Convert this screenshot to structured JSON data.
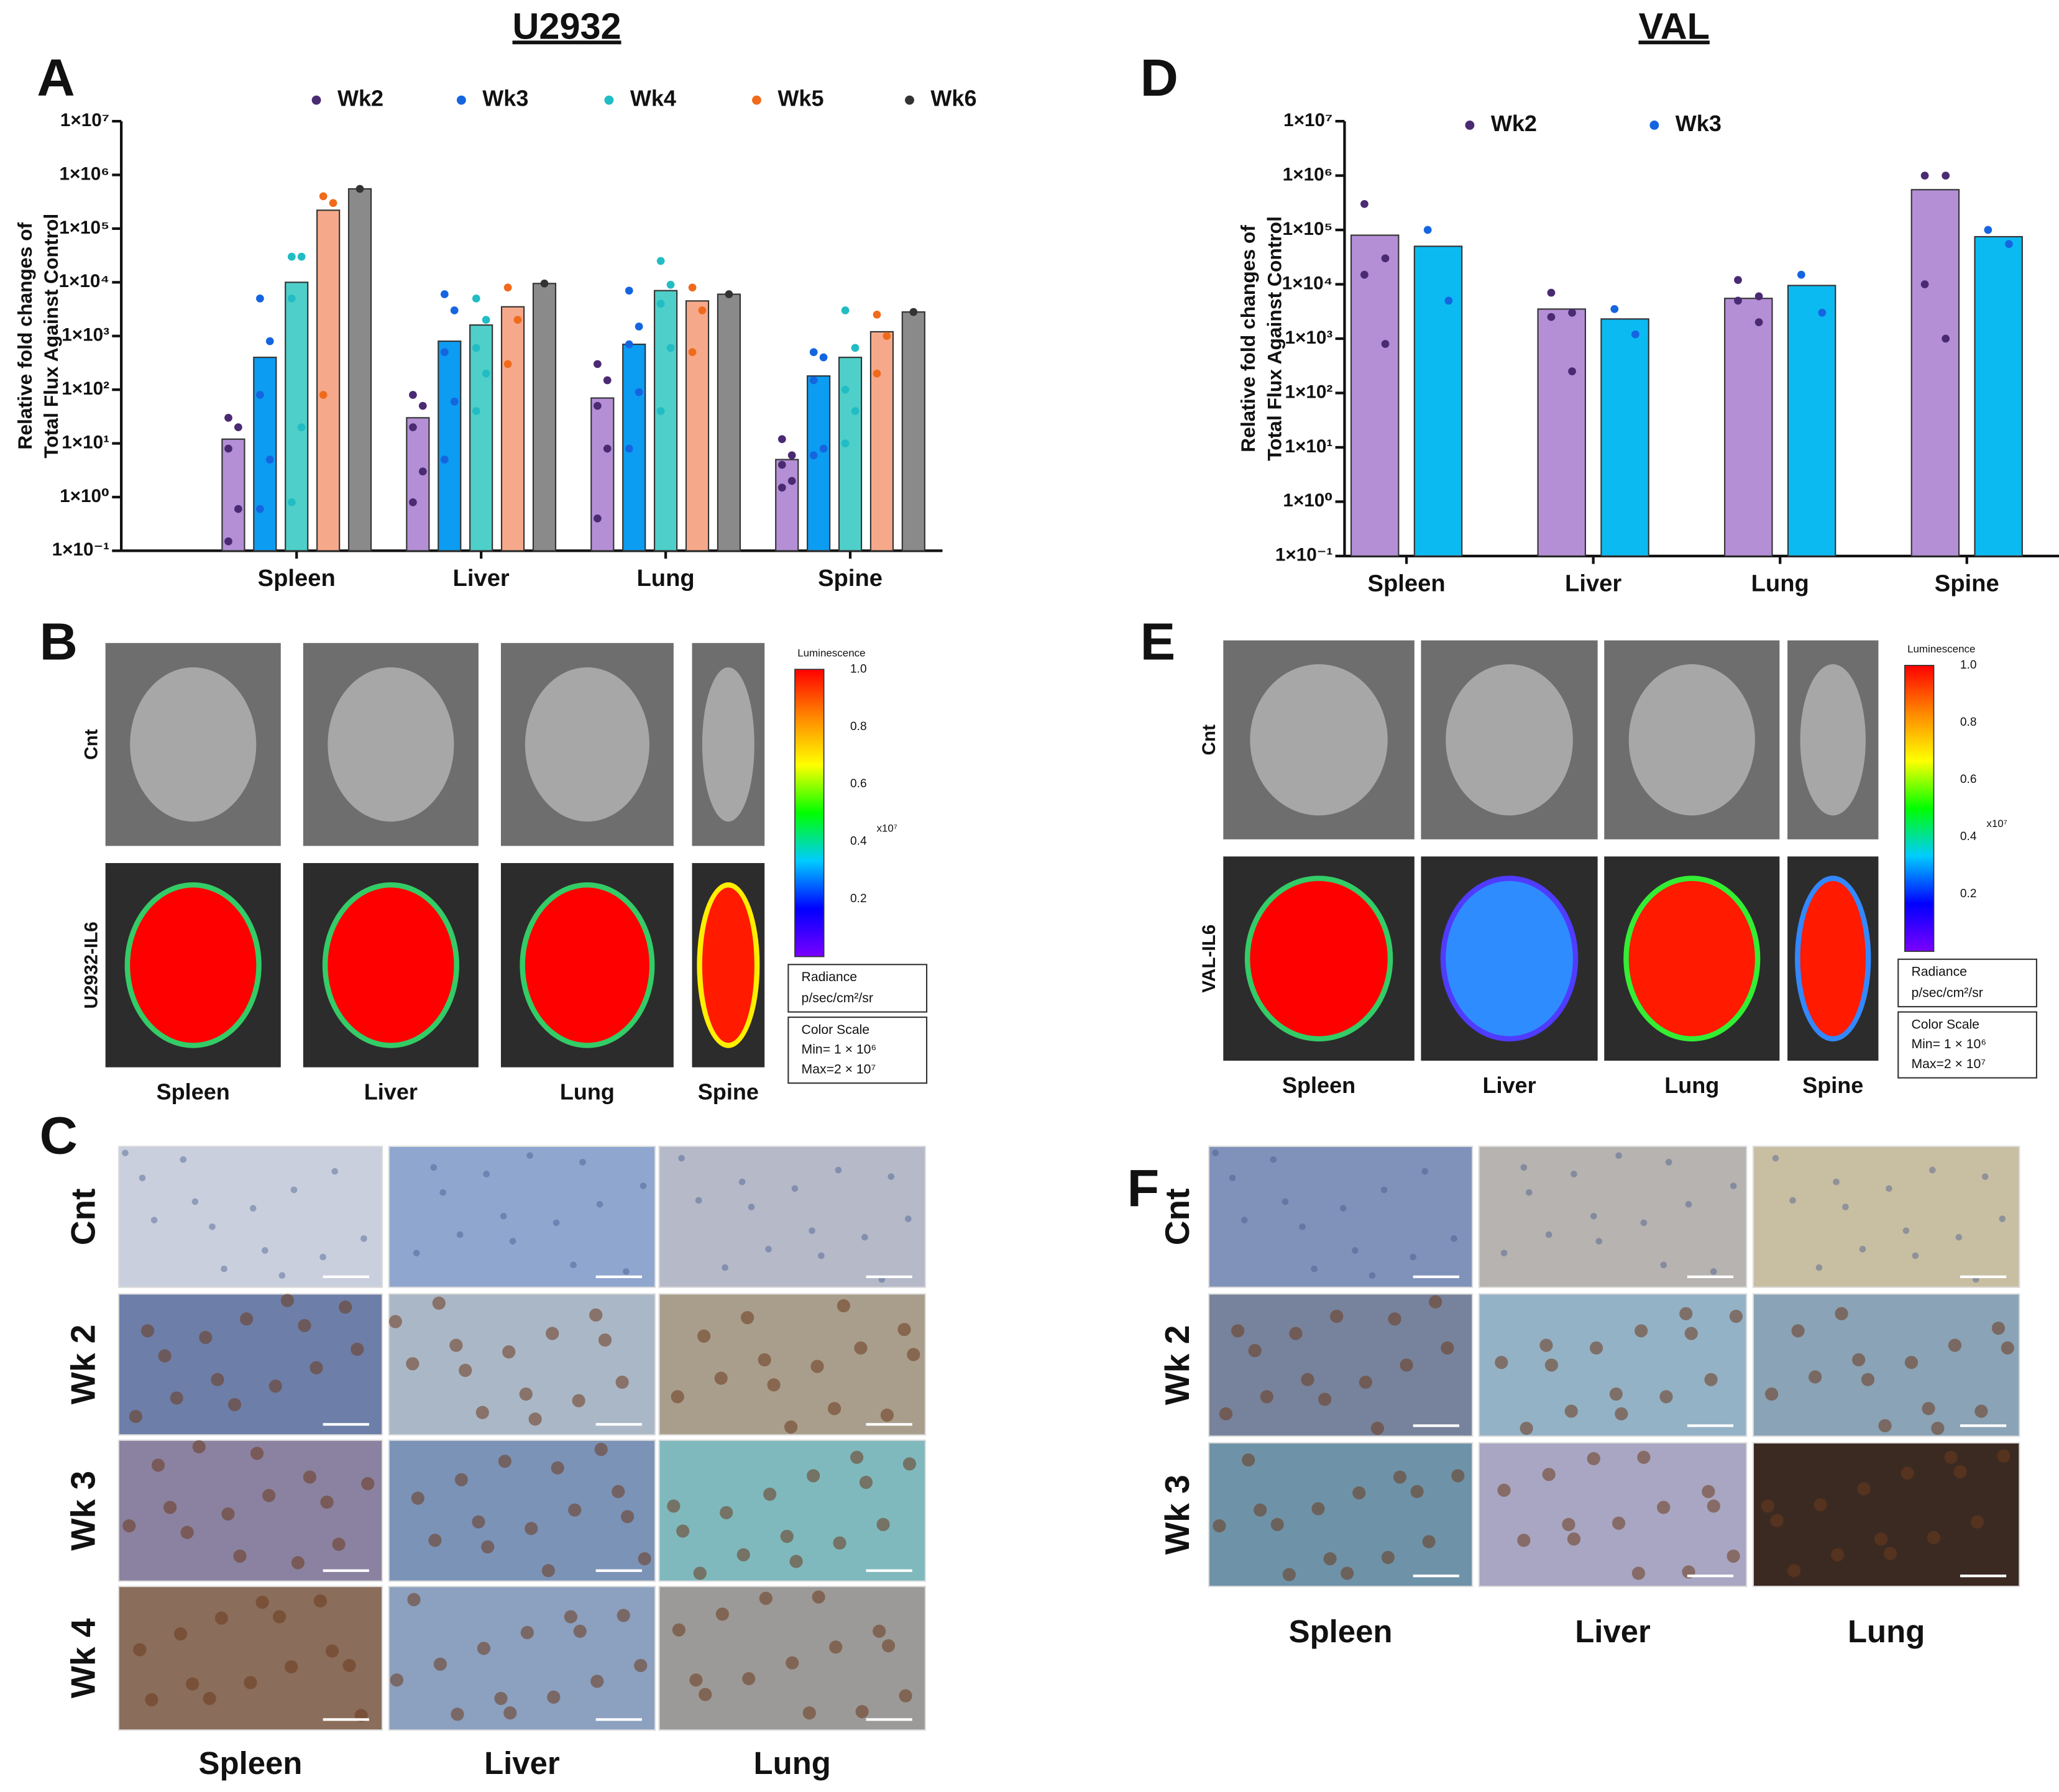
{
  "chart_data": [
    {
      "type": "bar",
      "panel": "A",
      "title": "U2932",
      "ylabel": [
        "Relative fold changes of",
        "Total Flux Against Control"
      ],
      "categories": [
        "Spleen",
        "Liver",
        "Lung",
        "Spine"
      ],
      "log": true,
      "ylim": [
        0.1,
        10000000
      ],
      "yticks": [
        {
          "value": 0.1,
          "label": "1×10⁻¹"
        },
        {
          "value": 1,
          "label": "1×10⁰"
        },
        {
          "value": 10,
          "label": "1×10¹"
        },
        {
          "value": 100,
          "label": "1×10²"
        },
        {
          "value": 1000,
          "label": "1×10³"
        },
        {
          "value": 10000,
          "label": "1×10⁴"
        },
        {
          "value": 100000,
          "label": "1×10⁵"
        },
        {
          "value": 1000000,
          "label": "1×10⁶"
        },
        {
          "value": 10000000,
          "label": "1×10⁷"
        }
      ],
      "series": [
        {
          "name": "Wk2",
          "color": "#b48fd6",
          "point_color": "#4a2a72",
          "values": [
            12,
            30,
            70,
            5
          ],
          "points": [
            [
              30,
              20,
              8,
              0.6,
              0.15
            ],
            [
              80,
              50,
              20,
              3,
              0.8
            ],
            [
              300,
              150,
              50,
              8,
              0.4
            ],
            [
              12,
              6,
              4,
              2,
              1.5
            ]
          ]
        },
        {
          "name": "Wk3",
          "color": "#0c9cf2",
          "point_color": "#1565e0",
          "values": [
            400,
            800,
            700,
            180
          ],
          "points": [
            [
              5000,
              800,
              80,
              5,
              0.6
            ],
            [
              6000,
              3000,
              500,
              60,
              5
            ],
            [
              7000,
              1500,
              700,
              90,
              8
            ],
            [
              500,
              400,
              150,
              8,
              6
            ]
          ]
        },
        {
          "name": "Wk4",
          "color": "#4fcfc9",
          "point_color": "#22bcc4",
          "values": [
            10000,
            1600,
            7000,
            400
          ],
          "points": [
            [
              30000,
              30000,
              5000,
              20,
              0.8
            ],
            [
              5000,
              2000,
              600,
              200,
              40
            ],
            [
              25000,
              9000,
              4000,
              600,
              40
            ],
            [
              3000,
              600,
              100,
              40,
              10
            ]
          ]
        },
        {
          "name": "Wk5",
          "color": "#f6a98a",
          "point_color": "#f06a1c",
          "values": [
            220000,
            3500,
            4500,
            1200
          ],
          "points": [
            [
              400000,
              300000,
              80
            ],
            [
              8000,
              2000,
              300
            ],
            [
              8000,
              3000,
              500
            ],
            [
              2500,
              1000,
              200
            ]
          ]
        },
        {
          "name": "Wk6",
          "color": "#8a8a8a",
          "point_color": "#333333",
          "values": [
            550000,
            9500,
            6000,
            2800
          ],
          "points": [
            [
              550000
            ],
            [
              9500
            ],
            [
              6000
            ],
            [
              2800
            ]
          ]
        }
      ]
    },
    {
      "type": "bar",
      "panel": "D",
      "title": "VAL",
      "ylabel": [
        "Relative fold changes of",
        "Total Flux Against Control"
      ],
      "categories": [
        "Spleen",
        "Liver",
        "Lung",
        "Spine"
      ],
      "log": true,
      "ylim": [
        0.1,
        10000000
      ],
      "yticks": [
        {
          "value": 0.1,
          "label": "1×10⁻¹"
        },
        {
          "value": 1,
          "label": "1×10⁰"
        },
        {
          "value": 10,
          "label": "1×10¹"
        },
        {
          "value": 100,
          "label": "1×10²"
        },
        {
          "value": 1000,
          "label": "1×10³"
        },
        {
          "value": 10000,
          "label": "1×10⁴"
        },
        {
          "value": 100000,
          "label": "1×10⁵"
        },
        {
          "value": 1000000,
          "label": "1×10⁶"
        },
        {
          "value": 10000000,
          "label": "1×10⁷"
        }
      ],
      "series": [
        {
          "name": "Wk2",
          "color": "#b48fd6",
          "point_color": "#4a2a72",
          "values": [
            80000,
            3500,
            5500,
            550000
          ],
          "points": [
            [
              300000,
              30000,
              15000,
              800
            ],
            [
              7000,
              3000,
              2500,
              250
            ],
            [
              12000,
              6000,
              5000,
              2000
            ],
            [
              1000000,
              1000000,
              10000,
              1000
            ]
          ]
        },
        {
          "name": "Wk3",
          "color": "#0cbaf2",
          "point_color": "#1565e0",
          "values": [
            50000,
            2300,
            9500,
            75000
          ],
          "points": [
            [
              100000,
              5000
            ],
            [
              3500,
              1200
            ],
            [
              15000,
              3000
            ],
            [
              100000,
              55000
            ]
          ]
        }
      ]
    }
  ],
  "figure": {
    "panel_labels": {
      "B": "B",
      "C": "C",
      "E": "E",
      "F": "F"
    },
    "imaging_b": {
      "rows": [
        "Cnt",
        "U2932-IL6"
      ],
      "cols": [
        "Spleen",
        "Liver",
        "Lung",
        "Spine"
      ]
    },
    "imaging_e": {
      "rows": [
        "Cnt",
        "VAL-IL6"
      ],
      "cols": [
        "Spleen",
        "Liver",
        "Lung",
        "Spine"
      ]
    },
    "colorbar": {
      "title": "Luminescence",
      "ticks": [
        "1.0",
        "0.8",
        "0.6",
        "0.4",
        "0.2"
      ],
      "multiplier": "x10⁷",
      "unit_title": "Radiance",
      "unit": "p/sec/cm²/sr",
      "scale_title": "Color Scale",
      "min": "Min= 1 × 10⁶",
      "max": "Max=2 × 10⁷"
    },
    "histology_c": {
      "rows": [
        "Cnt",
        "Wk 2",
        "Wk 3",
        "Wk 4"
      ],
      "cols": [
        "Spleen",
        "Liver",
        "Lung"
      ]
    },
    "histology_f": {
      "rows": [
        "Cnt",
        "Wk 2",
        "Wk 3"
      ],
      "cols": [
        "Spleen",
        "Liver",
        "Lung"
      ]
    }
  }
}
